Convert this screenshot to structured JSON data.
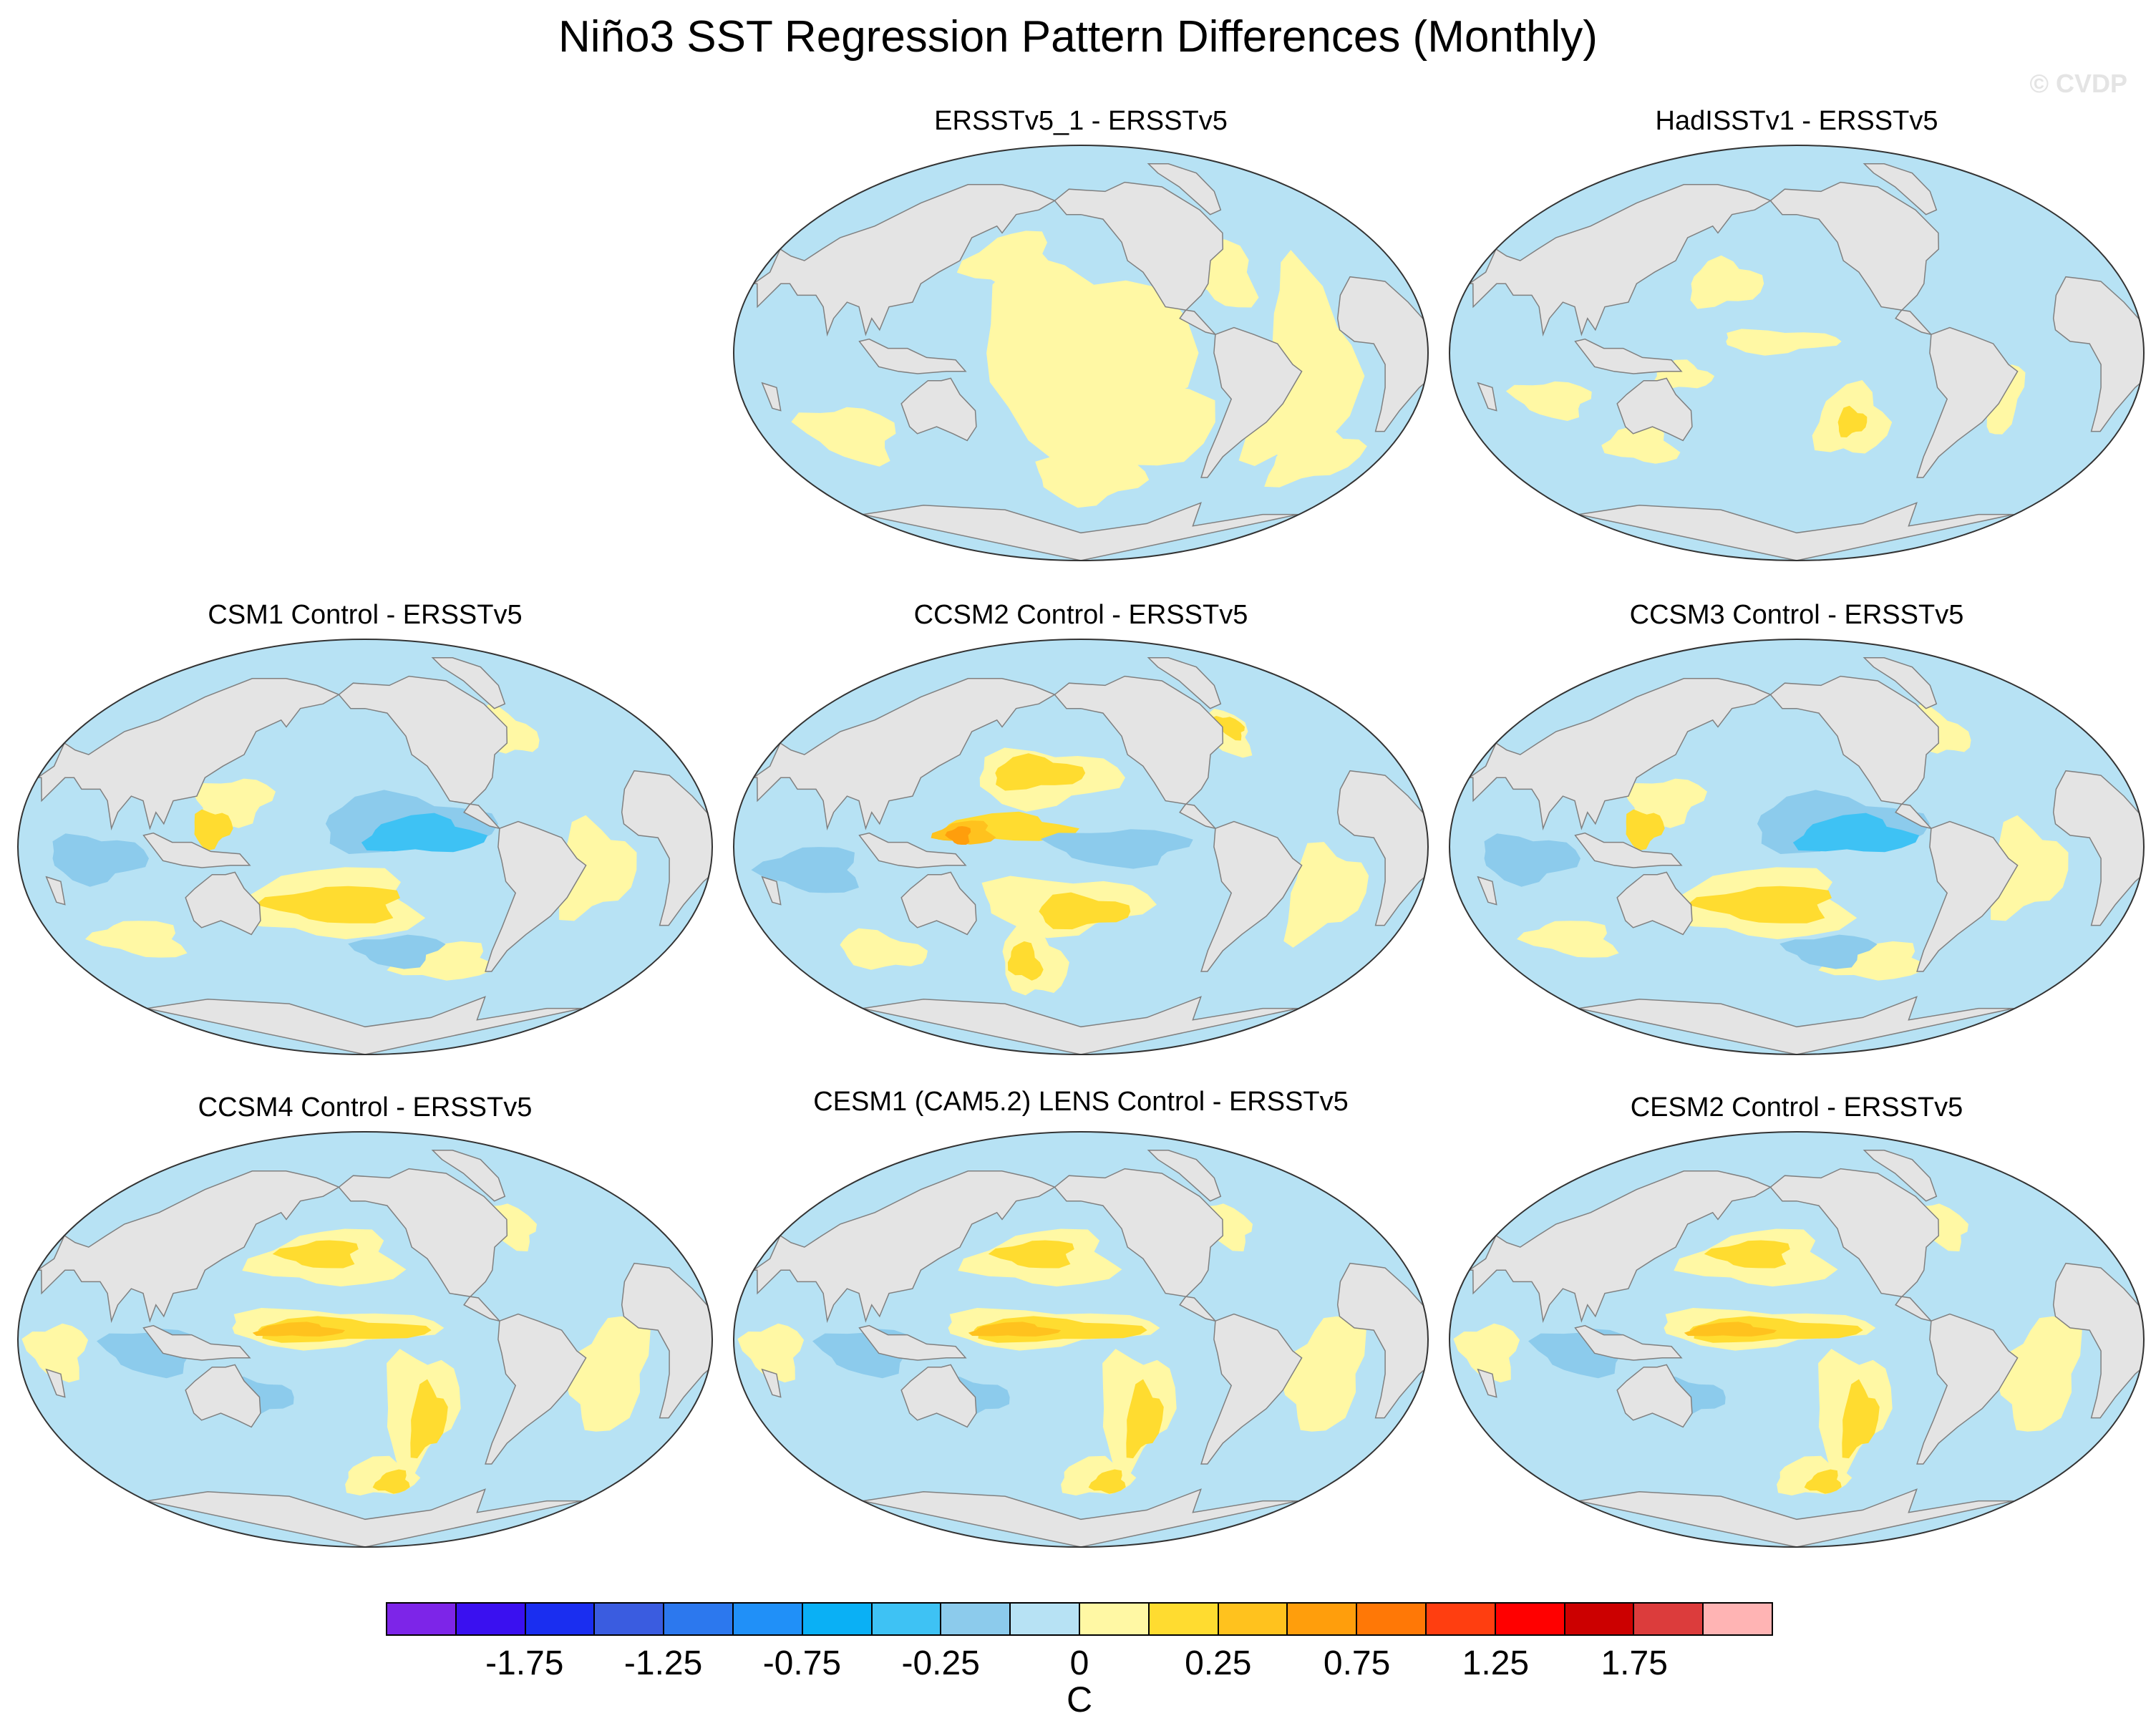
{
  "title": "Niño3 SST Regression Pattern Differences (Monthly)",
  "copyright": "© CVDP",
  "panels": [
    {
      "title": "ERSSTv5_1 - ERSSTv5",
      "pattern": "weak"
    },
    {
      "title": "HadISSTv1 - ERSSTv5",
      "pattern": "noisy"
    },
    {
      "title": "CSM1 Control - ERSSTv5",
      "pattern": "cold_tongue"
    },
    {
      "title": "CCSM2 Control - ERSSTv5",
      "pattern": "warm_west"
    },
    {
      "title": "CCSM3 Control - ERSSTv5",
      "pattern": "cold_tongue"
    },
    {
      "title": "CCSM4 Control - ERSSTv5",
      "pattern": "warm_band"
    },
    {
      "title": "CESM1 (CAM5.2) LENS Control - ERSSTv5",
      "pattern": "warm_band"
    },
    {
      "title": "CESM2 Control - ERSSTv5",
      "pattern": "warm_band"
    }
  ],
  "colorbar": {
    "colors": [
      "#7d25e8",
      "#3a10f0",
      "#1a2ef0",
      "#3a5ce0",
      "#2c78ee",
      "#2090f8",
      "#0ab0f5",
      "#3ec2f4",
      "#8ccbec",
      "#b7e2f4",
      "#fff8a4",
      "#ffdc30",
      "#ffc21e",
      "#ff9e0c",
      "#ff7806",
      "#ff3e10",
      "#ff0000",
      "#cc0000",
      "#dc3c3c",
      "#ffb4b4"
    ],
    "labels": [
      "-1.75",
      "-1.25",
      "-0.75",
      "-0.25",
      "0",
      "0.25",
      "0.75",
      "1.25",
      "1.75"
    ],
    "units": "C"
  },
  "map_colors": {
    "land": "#e4e4e4",
    "coast": "#808080",
    "neg1": "#b7e2f4",
    "neg2": "#8ccbec",
    "neg3": "#3ec2f4",
    "pos1": "#fff8a4",
    "pos2": "#ffdc30",
    "pos3": "#ffc21e",
    "pos4": "#ff9e0c"
  }
}
